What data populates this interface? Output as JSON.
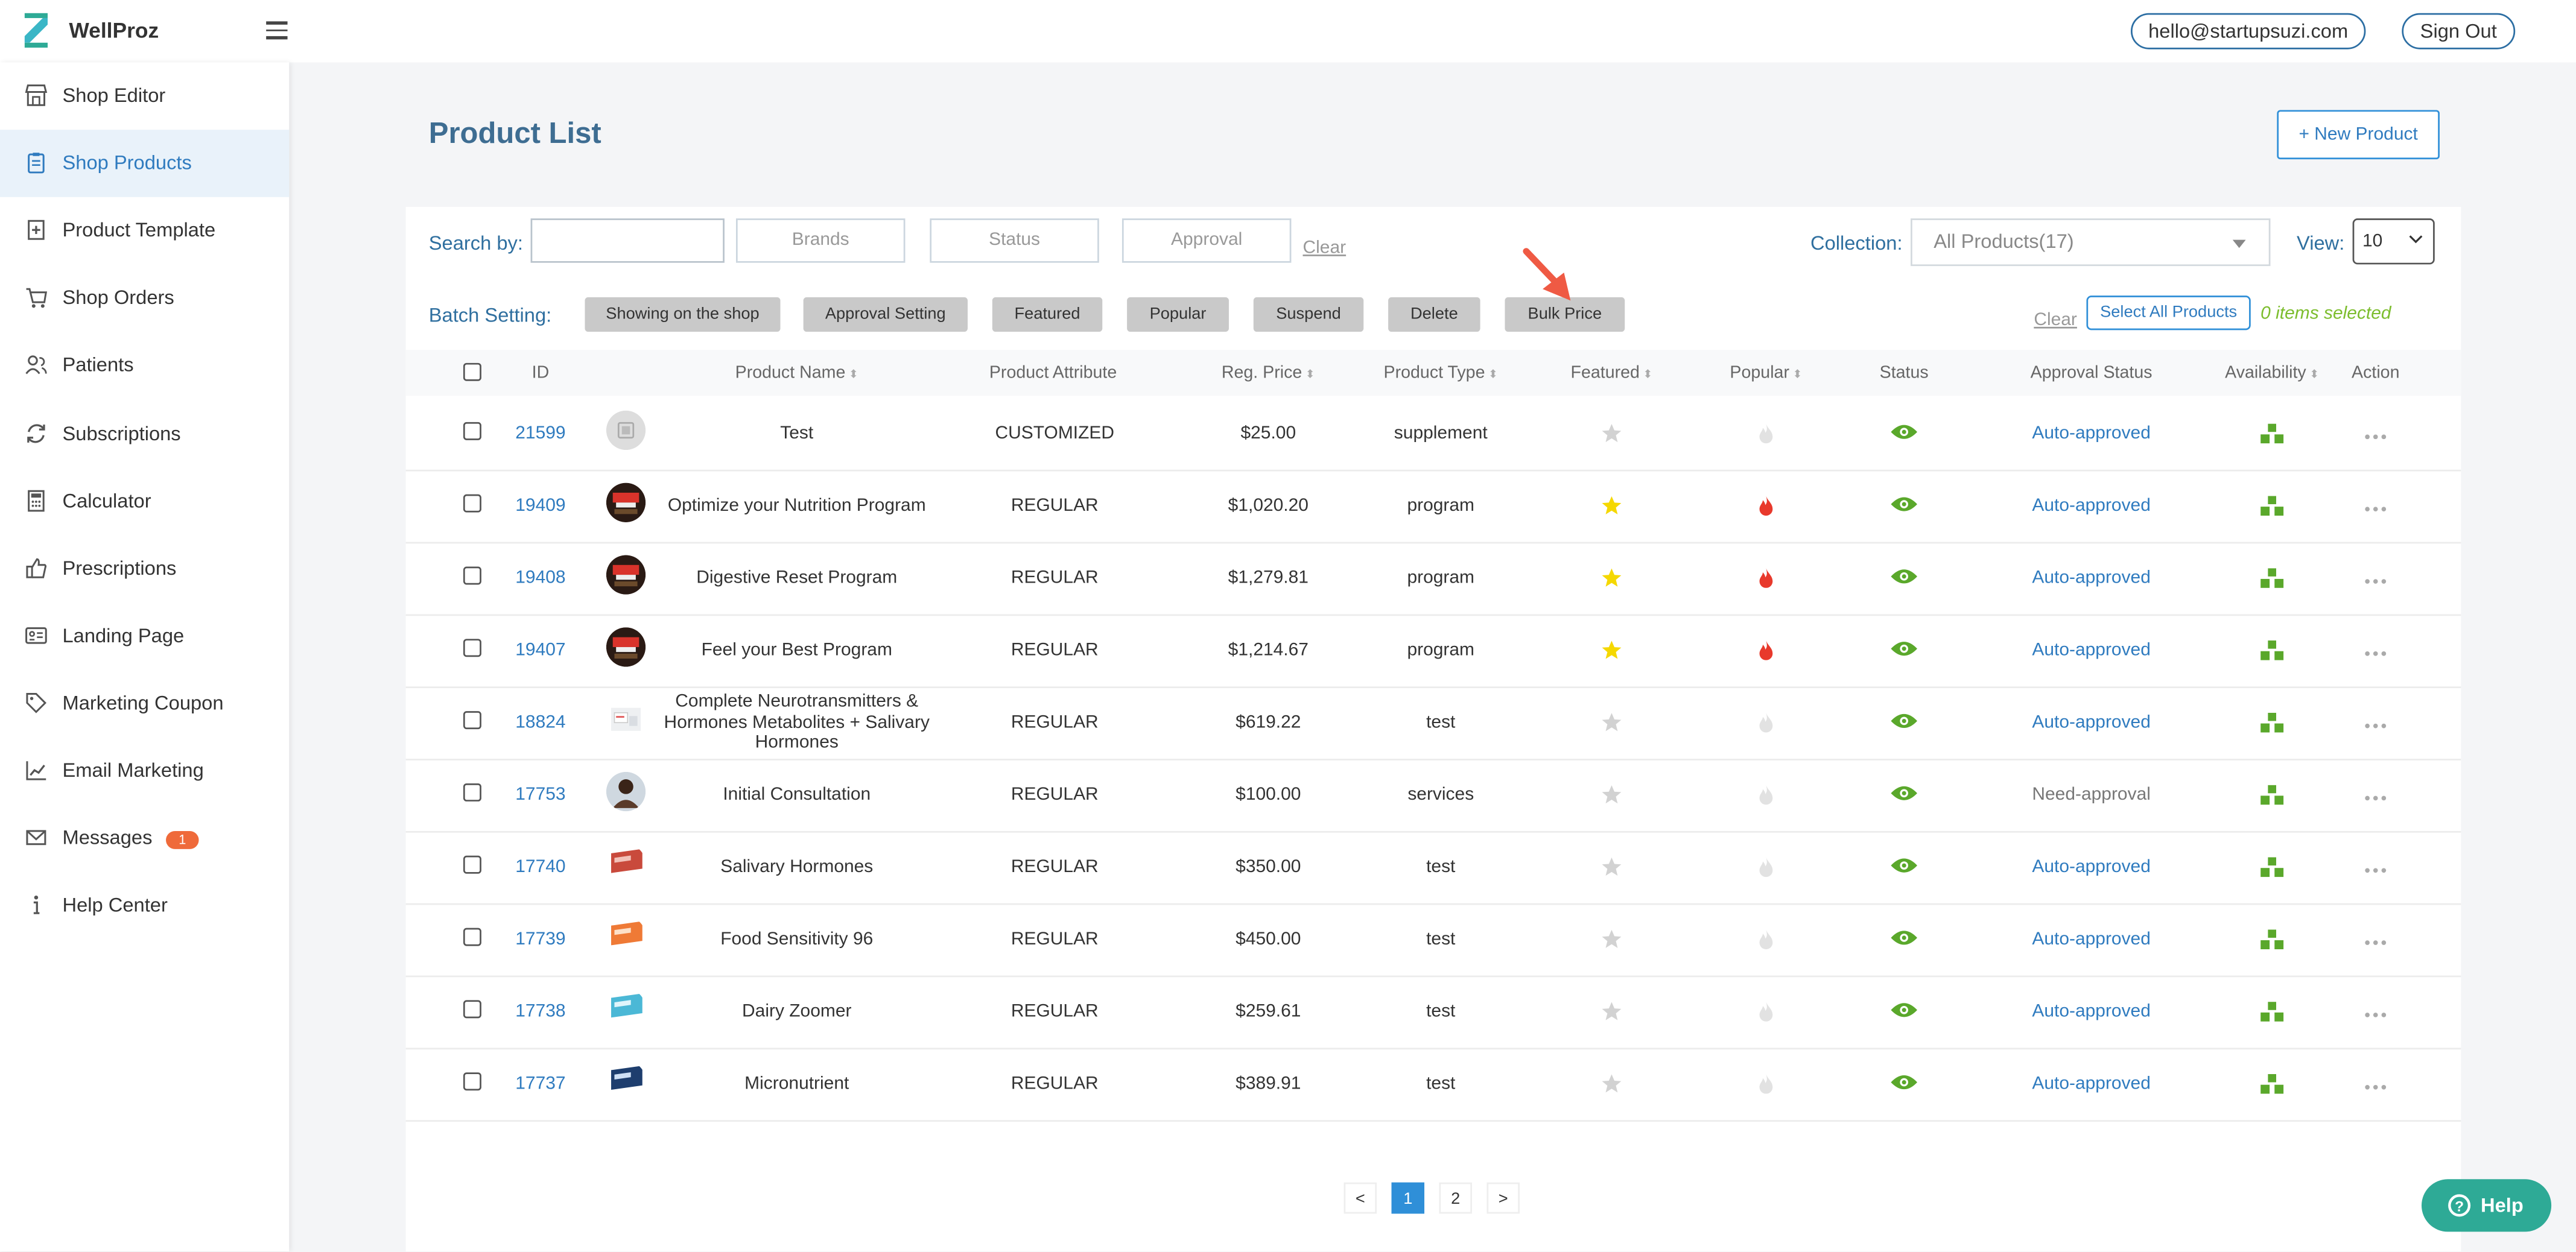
{
  "app": {
    "brand": "WellProz"
  },
  "header": {
    "email": "hello@startupsuzi.com",
    "sign_out": "Sign Out"
  },
  "sidebar": {
    "items": [
      {
        "label": "Shop Editor",
        "icon": "storefront-icon",
        "active": false
      },
      {
        "label": "Shop Products",
        "icon": "clipboard-icon",
        "active": true
      },
      {
        "label": "Product Template",
        "icon": "add-file-icon",
        "active": false
      },
      {
        "label": "Shop Orders",
        "icon": "cart-icon",
        "active": false
      },
      {
        "label": "Patients",
        "icon": "users-icon",
        "active": false
      },
      {
        "label": "Subscriptions",
        "icon": "refresh-icon",
        "active": false
      },
      {
        "label": "Calculator",
        "icon": "calculator-icon",
        "active": false
      },
      {
        "label": "Prescriptions",
        "icon": "thumbs-up-icon",
        "active": false
      },
      {
        "label": "Landing Page",
        "icon": "id-card-icon",
        "active": false
      },
      {
        "label": "Marketing Coupon",
        "icon": "tag-icon",
        "active": false
      },
      {
        "label": "Email Marketing",
        "icon": "line-chart-icon",
        "active": false
      },
      {
        "label": "Messages",
        "icon": "mail-icon",
        "active": false,
        "badge": "1"
      },
      {
        "label": "Help Center",
        "icon": "info-icon",
        "active": false
      }
    ]
  },
  "main": {
    "title": "Product List",
    "new_product": "+ New Product",
    "search": {
      "label": "Search by:",
      "brands": "Brands",
      "status": "Status",
      "approval": "Approval",
      "clear": "Clear"
    },
    "collection": {
      "label": "Collection:",
      "value": "All Products(17)"
    },
    "view": {
      "label": "View:",
      "value": "10"
    },
    "batch": {
      "label": "Batch Setting:",
      "buttons": [
        "Showing on the shop",
        "Approval Setting",
        "Featured",
        "Popular",
        "Suspend",
        "Delete",
        "Bulk Price"
      ],
      "clear": "Clear",
      "select_all": "Select All Products",
      "selected": "0 items selected"
    },
    "columns": [
      "ID",
      "Product Name",
      "Product Attribute",
      "Reg. Price",
      "Product Type",
      "Featured",
      "Popular",
      "Status",
      "Approval Status",
      "Availability",
      "Action"
    ],
    "rows": [
      {
        "id": "21599",
        "name": "Test",
        "attribute": "CUSTOMIZED",
        "price": "$25.00",
        "type": "supplement",
        "featured": false,
        "popular": false,
        "approval": "Auto-approved",
        "thumb": "placeholder"
      },
      {
        "id": "19409",
        "name": "Optimize your Nutrition Program",
        "attribute": "REGULAR",
        "price": "$1,020.20",
        "type": "program",
        "featured": true,
        "popular": true,
        "approval": "Auto-approved",
        "thumb": "program"
      },
      {
        "id": "19408",
        "name": "Digestive Reset Program",
        "attribute": "REGULAR",
        "price": "$1,279.81",
        "type": "program",
        "featured": true,
        "popular": true,
        "approval": "Auto-approved",
        "thumb": "program"
      },
      {
        "id": "19407",
        "name": "Feel your Best Program",
        "attribute": "REGULAR",
        "price": "$1,214.67",
        "type": "program",
        "featured": true,
        "popular": true,
        "approval": "Auto-approved",
        "thumb": "program"
      },
      {
        "id": "18824",
        "name": "Complete Neurotransmitters & Hormones Metabolites + Salivary Hormones",
        "attribute": "REGULAR",
        "price": "$619.22",
        "type": "test",
        "featured": false,
        "popular": false,
        "approval": "Auto-approved",
        "thumb": "kit-white"
      },
      {
        "id": "17753",
        "name": "Initial Consultation",
        "attribute": "REGULAR",
        "price": "$100.00",
        "type": "services",
        "featured": false,
        "popular": false,
        "approval": "Need-approval",
        "thumb": "person"
      },
      {
        "id": "17740",
        "name": "Salivary Hormones",
        "attribute": "REGULAR",
        "price": "$350.00",
        "type": "test",
        "featured": false,
        "popular": false,
        "approval": "Auto-approved",
        "thumb": "kit-red"
      },
      {
        "id": "17739",
        "name": "Food Sensitivity 96",
        "attribute": "REGULAR",
        "price": "$450.00",
        "type": "test",
        "featured": false,
        "popular": false,
        "approval": "Auto-approved",
        "thumb": "kit-orange"
      },
      {
        "id": "17738",
        "name": "Dairy Zoomer",
        "attribute": "REGULAR",
        "price": "$259.61",
        "type": "test",
        "featured": false,
        "popular": false,
        "approval": "Auto-approved",
        "thumb": "kit-cyan"
      },
      {
        "id": "17737",
        "name": "Micronutrient",
        "attribute": "REGULAR",
        "price": "$389.91",
        "type": "test",
        "featured": false,
        "popular": false,
        "approval": "Auto-approved",
        "thumb": "kit-navy"
      }
    ],
    "pagination": {
      "prev": "<",
      "pages": [
        "1",
        "2"
      ],
      "current": "1",
      "next": ">"
    }
  },
  "help_button": "Help",
  "colors": {
    "accent": "#2f7bbf",
    "status_green": "#5aa82b",
    "featured": "#f5d800",
    "popular": "#e8392c",
    "help": "#2eaa96"
  }
}
